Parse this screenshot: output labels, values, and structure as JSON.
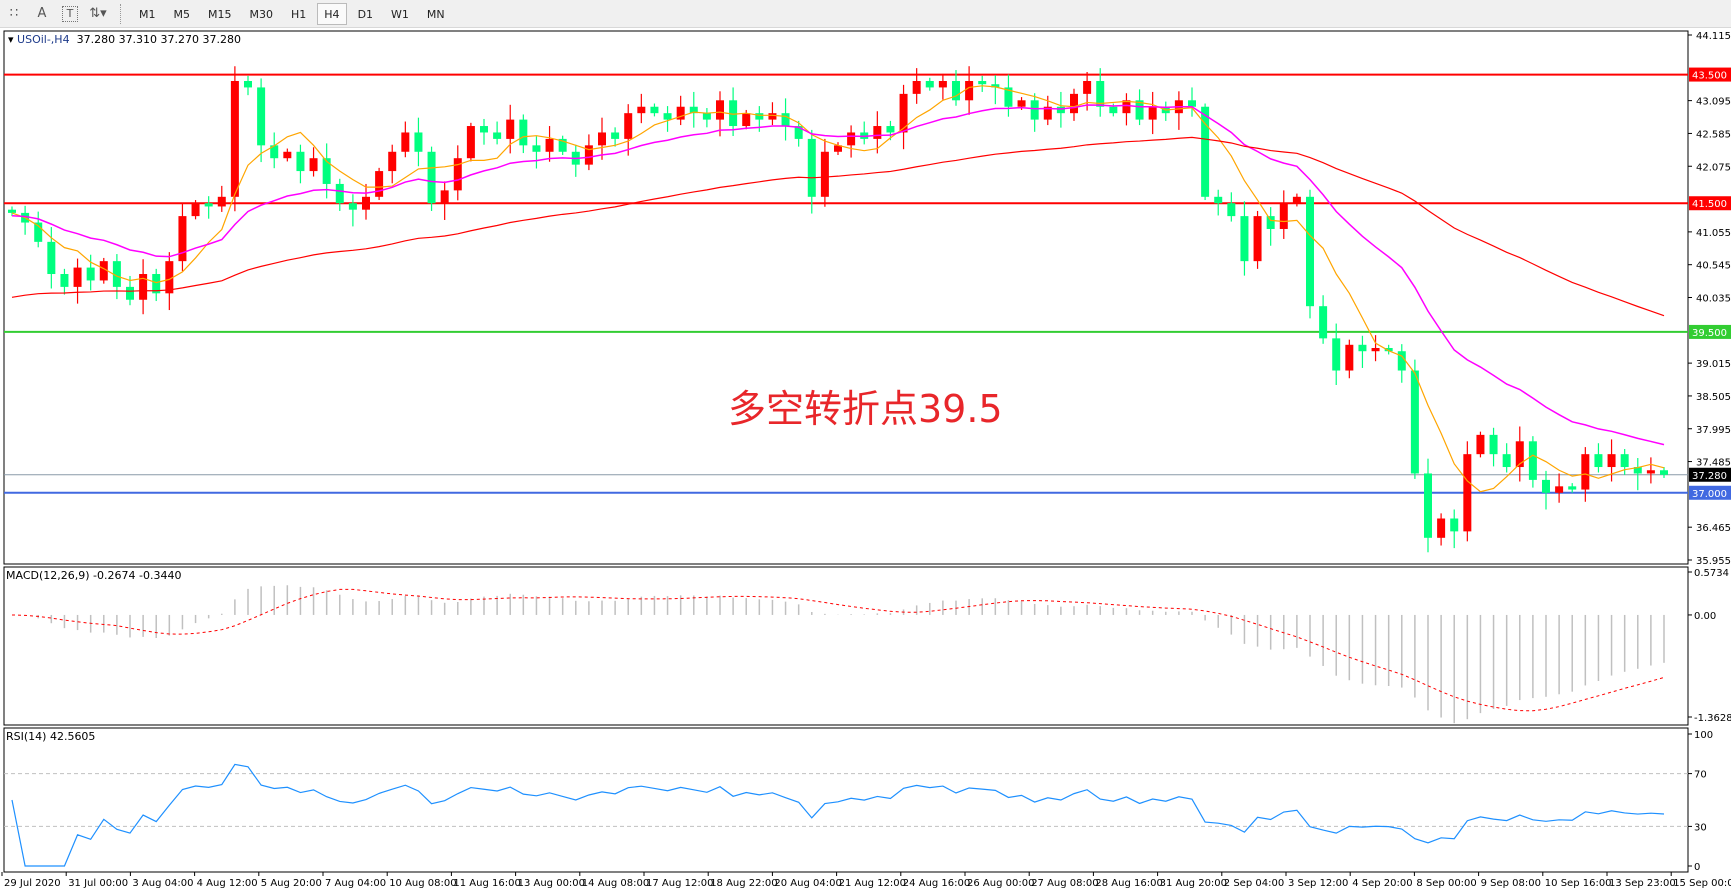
{
  "toolbar": {
    "icons": [
      "grid-icon",
      "text-label-icon",
      "text-box-icon",
      "arrows-icon"
    ],
    "text_icon_label": "A",
    "textbox_icon_label": "T",
    "timeframes": [
      "M1",
      "M5",
      "M15",
      "M30",
      "H1",
      "H4",
      "D1",
      "W1",
      "MN"
    ],
    "active_timeframe": "H4"
  },
  "main": {
    "symbol": "USOil-,H4",
    "ohlc": "37.280 37.310 37.270 37.280",
    "annotation": "多空转折点39.5",
    "price_ticks": [
      "44.115",
      "43.095",
      "42.585",
      "42.075",
      "41.055",
      "40.545",
      "40.035",
      "39.015",
      "38.505",
      "37.995",
      "37.485",
      "36.465",
      "35.955"
    ],
    "levels": [
      {
        "label": "43.500",
        "value": 43.5,
        "color": "#ff0000"
      },
      {
        "label": "41.500",
        "value": 41.5,
        "color": "#ff0000"
      },
      {
        "label": "39.500",
        "value": 39.5,
        "color": "#32cd32"
      },
      {
        "label": "37.000",
        "value": 37.0,
        "color": "#4169e1"
      }
    ],
    "current_price": {
      "label": "37.280",
      "value": 37.28
    }
  },
  "macd": {
    "title": "MACD(12,26,9) -0.2674 -0.3440",
    "ticks": [
      "0.5734",
      "0.00",
      "-1.3628"
    ]
  },
  "rsi": {
    "title": "RSI(14) 42.5605",
    "ticks": [
      "100",
      "70",
      "30",
      "0"
    ]
  },
  "x_labels": [
    "29 Jul 2020",
    "31 Jul 00:00",
    "3 Aug 04:00",
    "4 Aug 12:00",
    "5 Aug 20:00",
    "7 Aug 04:00",
    "10 Aug 08:00",
    "11 Aug 16:00",
    "13 Aug 00:00",
    "14 Aug 08:00",
    "17 Aug 12:00",
    "18 Aug 22:00",
    "20 Aug 04:00",
    "21 Aug 12:00",
    "24 Aug 16:00",
    "26 Aug 00:00",
    "27 Aug 08:00",
    "28 Aug 16:00",
    "31 Aug 20:00",
    "2 Sep 04:00",
    "3 Sep 12:00",
    "4 Sep 20:00",
    "8 Sep 00:00",
    "9 Sep 08:00",
    "10 Sep 16:00",
    "13 Sep 23:00",
    "15 Sep 00:00"
  ],
  "chart_data": {
    "type": "candlestick",
    "symbol": "USOil-",
    "timeframe": "H4",
    "ylim": [
      35.955,
      44.115
    ],
    "up_color": "#ff0000",
    "down_color": "#00ff7f",
    "closes": [
      41.35,
      41.2,
      40.9,
      40.4,
      40.2,
      40.5,
      40.3,
      40.6,
      40.2,
      40.0,
      40.4,
      40.1,
      40.6,
      41.3,
      41.5,
      41.45,
      41.6,
      43.4,
      43.3,
      42.4,
      42.2,
      42.3,
      42.0,
      42.2,
      41.8,
      41.5,
      41.4,
      41.6,
      42.0,
      42.3,
      42.6,
      42.3,
      41.5,
      41.7,
      42.2,
      42.7,
      42.6,
      42.5,
      42.8,
      42.4,
      42.3,
      42.5,
      42.3,
      42.1,
      42.4,
      42.6,
      42.5,
      42.9,
      43.0,
      42.9,
      42.8,
      43.0,
      42.9,
      42.8,
      43.1,
      42.7,
      42.9,
      42.8,
      42.9,
      42.7,
      42.5,
      41.6,
      42.3,
      42.4,
      42.6,
      42.5,
      42.7,
      42.6,
      43.2,
      43.4,
      43.3,
      43.4,
      43.1,
      43.4,
      43.35,
      43.3,
      43.0,
      43.1,
      42.8,
      43.0,
      42.9,
      43.2,
      43.4,
      43.0,
      42.9,
      43.1,
      42.8,
      43.0,
      42.9,
      43.1,
      43.0,
      41.6,
      41.5,
      41.3,
      40.6,
      41.3,
      41.1,
      41.5,
      41.6,
      39.9,
      39.4,
      38.9,
      39.3,
      39.2,
      39.25,
      39.2,
      38.9,
      37.3,
      36.3,
      36.6,
      36.4,
      37.6,
      37.9,
      37.6,
      37.4,
      37.8,
      37.2,
      37.0,
      37.1,
      37.05,
      37.6,
      37.4,
      37.6,
      37.4,
      37.3,
      37.35,
      37.28
    ],
    "moving_averages": [
      {
        "color": "#ffa500"
      },
      {
        "color": "#ff00ff"
      },
      {
        "color": "#ff0000"
      }
    ],
    "macd_range": [
      -1.3628,
      0.5734
    ],
    "rsi_levels": [
      30,
      70
    ]
  }
}
